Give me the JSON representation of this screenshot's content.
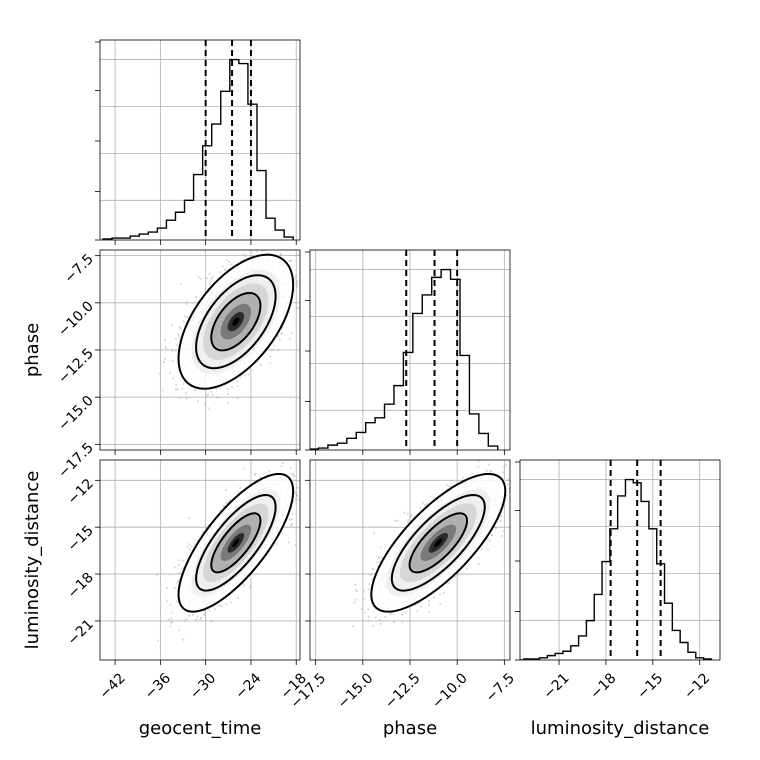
{
  "chart_data": {
    "type": "corner",
    "parameters": [
      "geocent_time",
      "phase",
      "luminosity_distance"
    ],
    "ranges": {
      "geocent_time": [
        -44,
        -17.5
      ],
      "phase": [
        -17.8,
        -7.2
      ],
      "luminosity_distance": [
        -23.5,
        -10.7
      ]
    },
    "ticks": {
      "geocent_time": [
        "−42",
        "−36",
        "−30",
        "−24",
        "−18"
      ],
      "phase": [
        "−17.5",
        "−15.0",
        "−12.5",
        "−10.0",
        "−7.5"
      ],
      "luminosity_distance": [
        "−21",
        "−18",
        "−15",
        "−12"
      ]
    },
    "tick_values": {
      "geocent_time": [
        -42,
        -36,
        -30,
        -24,
        -18
      ],
      "phase": [
        -17.5,
        -15.0,
        -12.5,
        -10.0,
        -7.5
      ],
      "luminosity_distance": [
        -21,
        -18,
        -15,
        -12
      ]
    },
    "quantiles": {
      "geocent_time": [
        -30.0,
        -26.5,
        -24.0
      ],
      "phase": [
        -12.7,
        -11.2,
        -10.0
      ],
      "luminosity_distance": [
        -17.7,
        -16.0,
        -14.5
      ]
    },
    "histograms": {
      "geocent_time": {
        "edges": [
          -43.6,
          -42.4,
          -41.2,
          -40.0,
          -38.8,
          -37.6,
          -36.4,
          -35.2,
          -34.0,
          -32.8,
          -31.6,
          -30.4,
          -29.2,
          -28.0,
          -26.8,
          -25.6,
          -24.4,
          -23.2,
          -22.0,
          -20.8,
          -19.6,
          -18.4
        ],
        "counts": [
          1,
          2,
          2,
          4,
          6,
          8,
          12,
          20,
          28,
          40,
          66,
          95,
          117,
          150,
          182,
          178,
          137,
          70,
          22,
          10,
          3
        ]
      },
      "phase": {
        "edges": [
          -17.85,
          -17.35,
          -16.85,
          -16.35,
          -15.85,
          -15.35,
          -14.85,
          -14.35,
          -13.85,
          -13.35,
          -12.85,
          -12.35,
          -11.85,
          -11.35,
          -10.85,
          -10.35,
          -9.85,
          -9.35,
          -8.85,
          -8.35,
          -7.85
        ],
        "counts": [
          1,
          2,
          5,
          7,
          12,
          18,
          28,
          33,
          47,
          66,
          100,
          140,
          159,
          177,
          185,
          175,
          97,
          37,
          17,
          4
        ]
      },
      "luminosity_distance": {
        "edges": [
          -23.75,
          -23.25,
          -22.75,
          -22.25,
          -21.75,
          -21.25,
          -20.75,
          -20.25,
          -19.75,
          -19.25,
          -18.75,
          -18.25,
          -17.75,
          -17.25,
          -16.75,
          -16.25,
          -15.75,
          -15.25,
          -14.75,
          -14.25,
          -13.75,
          -13.25,
          -12.75,
          -12.25,
          -11.75,
          -11.25
        ],
        "counts": [
          0,
          1,
          1,
          2,
          4,
          6,
          8,
          13,
          22,
          36,
          60,
          90,
          120,
          150,
          165,
          162,
          145,
          120,
          88,
          52,
          27,
          16,
          7,
          2,
          1
        ]
      }
    },
    "pairs": [
      {
        "x": "geocent_time",
        "y": "phase",
        "center": [
          -26.0,
          -11.0
        ],
        "sigma": [
          3.1,
          1.45
        ],
        "corr": 0.55
      },
      {
        "x": "geocent_time",
        "y": "luminosity_distance",
        "center": [
          -26.0,
          -16.0
        ],
        "sigma": [
          3.1,
          1.8
        ],
        "corr": 0.75
      },
      {
        "x": "phase",
        "y": "luminosity_distance",
        "center": [
          -11.0,
          -16.0
        ],
        "sigma": [
          1.45,
          1.8
        ],
        "corr": 0.75
      }
    ],
    "grid": true
  }
}
